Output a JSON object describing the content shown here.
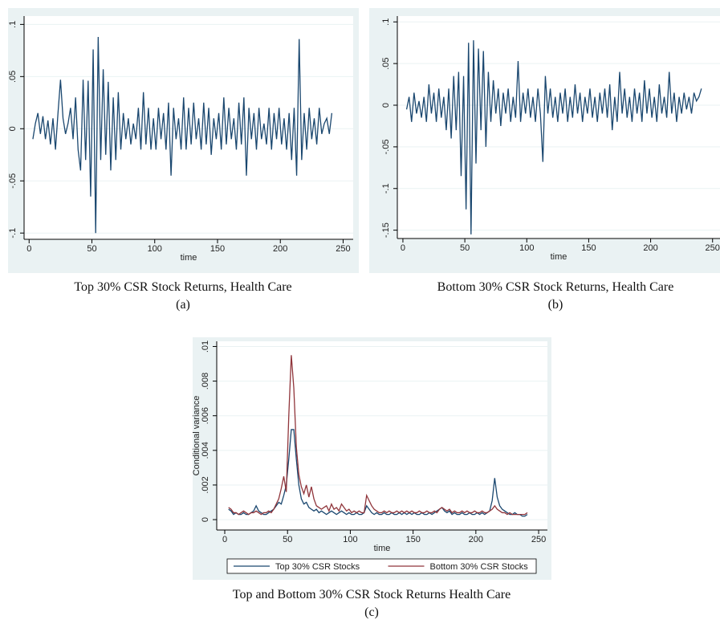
{
  "chart_data": [
    {
      "type": "line",
      "caption": "Top 30% CSR Stock Returns, Health Care",
      "label": "(a)",
      "x_label": "time",
      "color": "#1a476f",
      "grid": true,
      "xlim": [
        -4,
        258
      ],
      "xticks": [
        0,
        50,
        100,
        150,
        200,
        250
      ],
      "ylim": [
        -0.106,
        0.108
      ],
      "yticks": [
        {
          "value": -0.1,
          "label": "-.1"
        },
        {
          "value": -0.05,
          "label": "-.05"
        },
        0,
        {
          "value": 0.05,
          "label": ".05"
        },
        {
          "value": 0.1,
          "label": ".1"
        }
      ],
      "x": [
        3,
        5,
        7,
        9,
        11,
        13,
        15,
        17,
        19,
        21,
        23,
        25,
        27,
        29,
        31,
        33,
        35,
        37,
        39,
        41,
        43,
        45,
        47,
        49,
        51,
        53,
        55,
        57,
        59,
        61,
        63,
        65,
        67,
        69,
        71,
        73,
        75,
        77,
        79,
        81,
        83,
        85,
        87,
        89,
        91,
        93,
        95,
        97,
        99,
        101,
        103,
        105,
        107,
        109,
        111,
        113,
        115,
        117,
        119,
        121,
        123,
        125,
        127,
        129,
        131,
        133,
        135,
        137,
        139,
        141,
        143,
        145,
        147,
        149,
        151,
        153,
        155,
        157,
        159,
        161,
        163,
        165,
        167,
        169,
        171,
        173,
        175,
        177,
        179,
        181,
        183,
        185,
        187,
        189,
        191,
        193,
        195,
        197,
        199,
        201,
        203,
        205,
        207,
        209,
        211,
        213,
        215,
        217,
        219,
        221,
        223,
        225,
        227,
        229,
        231,
        233,
        235,
        237,
        239,
        241
      ],
      "values": [
        -0.01,
        0.005,
        0.015,
        -0.005,
        0.012,
        -0.01,
        0.008,
        -0.015,
        0.01,
        -0.02,
        0.015,
        0.047,
        0.01,
        -0.005,
        0.005,
        0.02,
        -0.01,
        0.03,
        -0.02,
        -0.04,
        0.047,
        -0.03,
        0.046,
        -0.065,
        0.076,
        -0.1,
        0.088,
        -0.03,
        0.057,
        -0.025,
        0.045,
        -0.04,
        0.03,
        -0.03,
        0.035,
        -0.02,
        0.015,
        -0.01,
        0.01,
        -0.015,
        0.005,
        -0.01,
        0.02,
        -0.02,
        0.035,
        -0.015,
        0.02,
        -0.02,
        0.01,
        -0.02,
        0.02,
        -0.01,
        0.015,
        -0.02,
        0.025,
        -0.045,
        0.02,
        -0.01,
        0.01,
        -0.02,
        0.03,
        -0.02,
        0.02,
        -0.015,
        0.025,
        -0.01,
        0.01,
        -0.02,
        0.025,
        -0.015,
        0.02,
        -0.025,
        0.01,
        -0.01,
        0.015,
        -0.02,
        0.03,
        -0.015,
        0.02,
        -0.01,
        0.01,
        -0.02,
        0.025,
        -0.015,
        0.03,
        -0.045,
        0.02,
        -0.01,
        0.015,
        -0.02,
        0.02,
        -0.01,
        0.005,
        -0.015,
        0.02,
        -0.02,
        0.015,
        -0.01,
        0.02,
        -0.015,
        0.01,
        -0.02,
        0.015,
        -0.03,
        0.02,
        -0.045,
        0.086,
        -0.03,
        0.015,
        -0.02,
        0.02,
        -0.01,
        0.01,
        -0.015,
        0.02,
        -0.005,
        0.005,
        0.01,
        -0.005,
        0.015
      ]
    },
    {
      "type": "line",
      "caption": "Bottom 30% CSR Stock Returns, Health Care",
      "label": "(b)",
      "x_label": "time",
      "color": "#1a476f",
      "grid": true,
      "xlim": [
        -4.5,
        256
      ],
      "xticks": [
        0,
        50,
        100,
        150,
        200,
        250
      ],
      "ylim": [
        -0.16,
        0.107
      ],
      "yticks": [
        {
          "value": -0.15,
          "label": "-.15"
        },
        {
          "value": -0.1,
          "label": "-.1"
        },
        {
          "value": -0.05,
          "label": "-.05"
        },
        0,
        {
          "value": 0.05,
          "label": ".05"
        },
        {
          "value": 0.1,
          "label": ".1"
        }
      ],
      "x": [
        3,
        5,
        7,
        9,
        11,
        13,
        15,
        17,
        19,
        21,
        23,
        25,
        27,
        29,
        31,
        33,
        35,
        37,
        39,
        41,
        43,
        45,
        47,
        49,
        51,
        53,
        55,
        57,
        59,
        61,
        63,
        65,
        67,
        69,
        71,
        73,
        75,
        77,
        79,
        81,
        83,
        85,
        87,
        89,
        91,
        93,
        95,
        97,
        99,
        101,
        103,
        105,
        107,
        109,
        111,
        113,
        115,
        117,
        119,
        121,
        123,
        125,
        127,
        129,
        131,
        133,
        135,
        137,
        139,
        141,
        143,
        145,
        147,
        149,
        151,
        153,
        155,
        157,
        159,
        161,
        163,
        165,
        167,
        169,
        171,
        173,
        175,
        177,
        179,
        181,
        183,
        185,
        187,
        189,
        191,
        193,
        195,
        197,
        199,
        201,
        203,
        205,
        207,
        209,
        211,
        213,
        215,
        217,
        219,
        221,
        223,
        225,
        227,
        229,
        231,
        233,
        235,
        237,
        239,
        241
      ],
      "values": [
        -0.005,
        0.01,
        -0.02,
        0.015,
        -0.01,
        0.005,
        -0.015,
        0.01,
        -0.02,
        0.025,
        -0.01,
        0.015,
        -0.02,
        0.02,
        -0.015,
        0.01,
        -0.03,
        0.02,
        -0.04,
        0.035,
        -0.03,
        0.04,
        -0.085,
        0.035,
        -0.125,
        0.075,
        -0.155,
        0.078,
        -0.07,
        0.068,
        -0.03,
        0.065,
        -0.05,
        0.04,
        -0.02,
        0.03,
        -0.01,
        0.02,
        -0.025,
        0.015,
        -0.01,
        0.02,
        -0.02,
        0.01,
        -0.015,
        0.053,
        -0.02,
        0.015,
        -0.01,
        0.02,
        -0.015,
        0.01,
        -0.02,
        0.02,
        -0.01,
        -0.068,
        0.035,
        -0.01,
        0.02,
        -0.015,
        0.01,
        -0.02,
        0.015,
        -0.01,
        0.02,
        -0.02,
        0.01,
        -0.015,
        0.025,
        -0.01,
        0.015,
        -0.02,
        0.01,
        -0.01,
        0.02,
        -0.015,
        0.01,
        -0.02,
        0.015,
        -0.01,
        0.02,
        -0.015,
        0.025,
        -0.03,
        0.01,
        -0.02,
        0.04,
        -0.01,
        0.02,
        -0.015,
        0.01,
        -0.02,
        0.02,
        -0.01,
        0.015,
        -0.02,
        0.03,
        -0.01,
        0.02,
        -0.015,
        0.01,
        -0.02,
        0.025,
        -0.01,
        0.01,
        -0.015,
        0.04,
        -0.01,
        0.015,
        -0.02,
        0.01,
        -0.01,
        0.015,
        -0.005,
        0.01,
        -0.01,
        0.015,
        0.005,
        0.01,
        0.02
      ]
    },
    {
      "type": "line",
      "caption": "Top and Bottom 30% CSR Stock Returns Health Care",
      "label": "(c)",
      "x_label": "time",
      "y_label": "Conditional variance",
      "grid": true,
      "legend": "bottom",
      "xlim": [
        -6.4,
        257
      ],
      "xticks": [
        0,
        50,
        100,
        150,
        200,
        250
      ],
      "ylim": [
        -0.0006,
        0.0103
      ],
      "yticks": [
        0,
        {
          "value": 0.002,
          "label": ".002"
        },
        {
          "value": 0.004,
          "label": ".004"
        },
        {
          "value": 0.006,
          "label": ".006"
        },
        {
          "value": 0.008,
          "label": ".008"
        },
        {
          "value": 0.01,
          "label": ".01"
        }
      ],
      "x": [
        3,
        5,
        7,
        9,
        11,
        13,
        15,
        17,
        19,
        21,
        23,
        25,
        27,
        29,
        31,
        33,
        35,
        37,
        39,
        41,
        43,
        45,
        47,
        49,
        51,
        53,
        55,
        57,
        59,
        61,
        63,
        65,
        67,
        69,
        71,
        73,
        75,
        77,
        79,
        81,
        83,
        85,
        87,
        89,
        91,
        93,
        95,
        97,
        99,
        101,
        103,
        105,
        107,
        109,
        111,
        113,
        115,
        117,
        119,
        121,
        123,
        125,
        127,
        129,
        131,
        133,
        135,
        137,
        139,
        141,
        143,
        145,
        147,
        149,
        151,
        153,
        155,
        157,
        159,
        161,
        163,
        165,
        167,
        169,
        171,
        173,
        175,
        177,
        179,
        181,
        183,
        185,
        187,
        189,
        191,
        193,
        195,
        197,
        199,
        201,
        203,
        205,
        207,
        209,
        211,
        213,
        215,
        217,
        219,
        221,
        223,
        225,
        227,
        229,
        231,
        233,
        235,
        237,
        239,
        241
      ],
      "series": [
        {
          "name": "Top 30% CSR Stocks",
          "color": "#1a476f",
          "values": [
            0.0006,
            0.0005,
            0.0003,
            0.0004,
            0.0003,
            0.0003,
            0.0004,
            0.0003,
            0.0003,
            0.0004,
            0.0005,
            0.0008,
            0.0005,
            0.0004,
            0.0003,
            0.0003,
            0.0004,
            0.0005,
            0.0006,
            0.0008,
            0.001,
            0.0009,
            0.0014,
            0.002,
            0.0035,
            0.0052,
            0.0052,
            0.0035,
            0.002,
            0.0012,
            0.0009,
            0.001,
            0.0007,
            0.0006,
            0.0005,
            0.0006,
            0.0004,
            0.0005,
            0.0004,
            0.0003,
            0.0004,
            0.0005,
            0.0004,
            0.0003,
            0.0004,
            0.0005,
            0.0004,
            0.0003,
            0.0004,
            0.0003,
            0.0003,
            0.0004,
            0.0003,
            0.0003,
            0.0004,
            0.0008,
            0.0006,
            0.0004,
            0.0003,
            0.0004,
            0.0003,
            0.0003,
            0.0004,
            0.0003,
            0.0003,
            0.0004,
            0.0003,
            0.0003,
            0.0004,
            0.0003,
            0.0004,
            0.0003,
            0.0004,
            0.0003,
            0.0004,
            0.0003,
            0.0003,
            0.0004,
            0.0003,
            0.0003,
            0.0004,
            0.0003,
            0.0004,
            0.0005,
            0.0006,
            0.0007,
            0.0005,
            0.0004,
            0.0005,
            0.0003,
            0.0004,
            0.0003,
            0.0003,
            0.0004,
            0.0003,
            0.0003,
            0.0004,
            0.0003,
            0.0003,
            0.0004,
            0.0003,
            0.0004,
            0.0003,
            0.0004,
            0.0005,
            0.0011,
            0.0024,
            0.0013,
            0.0008,
            0.0006,
            0.0005,
            0.0004,
            0.0003,
            0.0003,
            0.0004,
            0.0003,
            0.0003,
            0.0002,
            0.0002,
            0.0003
          ]
        },
        {
          "name": "Bottom 30% CSR Stocks",
          "color": "#90353b",
          "values": [
            0.0007,
            0.0006,
            0.0004,
            0.0004,
            0.0003,
            0.0004,
            0.0005,
            0.0004,
            0.0003,
            0.0004,
            0.0004,
            0.0005,
            0.0004,
            0.0003,
            0.0004,
            0.0004,
            0.0005,
            0.0004,
            0.0006,
            0.0009,
            0.0012,
            0.0018,
            0.0025,
            0.0016,
            0.006,
            0.0095,
            0.0076,
            0.0042,
            0.0026,
            0.0019,
            0.0015,
            0.002,
            0.0013,
            0.0019,
            0.0012,
            0.0008,
            0.0007,
            0.0006,
            0.0007,
            0.0008,
            0.0005,
            0.0009,
            0.0006,
            0.0007,
            0.0005,
            0.0009,
            0.0007,
            0.0005,
            0.0006,
            0.0004,
            0.0005,
            0.0004,
            0.0005,
            0.0004,
            0.0004,
            0.0014,
            0.0011,
            0.0008,
            0.0006,
            0.0005,
            0.0004,
            0.0004,
            0.0005,
            0.0004,
            0.0005,
            0.0004,
            0.0004,
            0.0005,
            0.0004,
            0.0005,
            0.0004,
            0.0005,
            0.0004,
            0.0005,
            0.0004,
            0.0004,
            0.0005,
            0.0004,
            0.0004,
            0.0005,
            0.0004,
            0.0004,
            0.0005,
            0.0004,
            0.0006,
            0.0007,
            0.0006,
            0.0005,
            0.0006,
            0.0004,
            0.0005,
            0.0004,
            0.0004,
            0.0005,
            0.0004,
            0.0005,
            0.0004,
            0.0004,
            0.0005,
            0.0004,
            0.0004,
            0.0005,
            0.0004,
            0.0004,
            0.0005,
            0.0006,
            0.0008,
            0.0006,
            0.0005,
            0.0004,
            0.0004,
            0.0003,
            0.0004,
            0.0003,
            0.0003,
            0.0003,
            0.0003,
            0.0003,
            0.0003,
            0.0004
          ]
        }
      ]
    }
  ]
}
